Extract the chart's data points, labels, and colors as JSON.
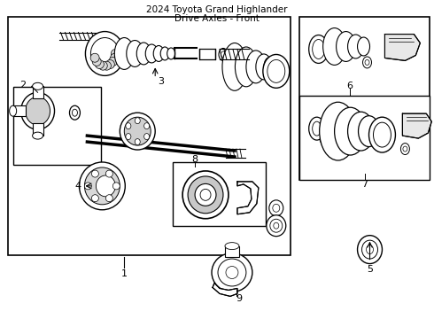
{
  "background_color": "#ffffff",
  "line_color": "#000000",
  "text_color": "#000000",
  "font_size_labels": 8,
  "title_line1": "2024 Toyota Grand Highlander",
  "title_line2": "Drive Axles - Front"
}
